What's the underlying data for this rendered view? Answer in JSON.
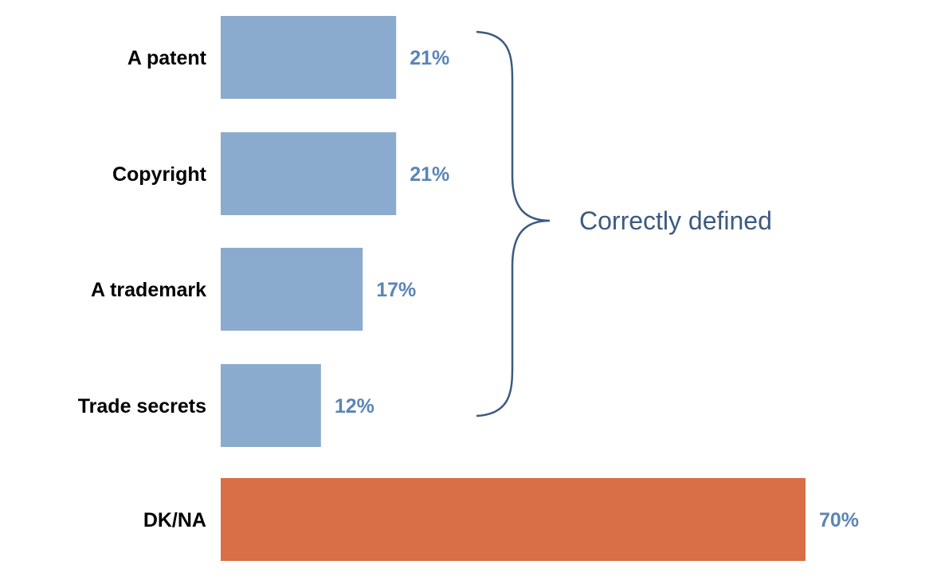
{
  "chart_data": {
    "type": "bar",
    "orientation": "horizontal",
    "categories": [
      "A patent",
      "Copyright",
      "A trademark",
      "Trade secrets",
      "DK/NA"
    ],
    "values": [
      21,
      21,
      17,
      12,
      70
    ],
    "data_labels": [
      "21%",
      "21%",
      "17%",
      "12%",
      "70%"
    ],
    "unit": "%",
    "xlim": [
      0,
      70
    ],
    "grid": false,
    "axes_visible": false,
    "colors": {
      "correct": "#8AABCD",
      "dk": "#D86F47",
      "label": "#5B85B5",
      "brace": "#3D5A80"
    },
    "annotation": {
      "text": "Correctly defined",
      "spans": [
        "A patent",
        "Copyright",
        "A trademark",
        "Trade secrets"
      ]
    }
  }
}
